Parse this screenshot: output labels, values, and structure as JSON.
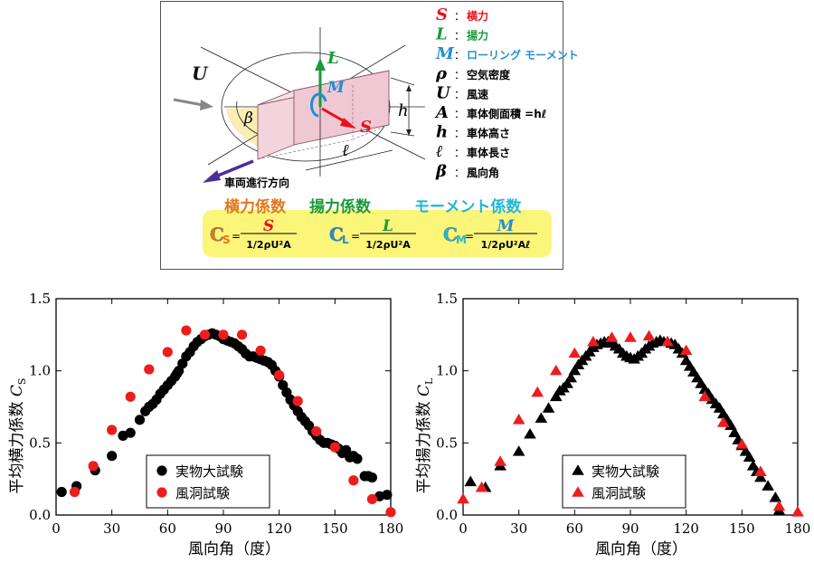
{
  "diagram": {
    "legend": [
      {
        "sym": "S",
        "sep": "：",
        "desc": "横力",
        "symColor": "#e8121b",
        "descColor": "#e8121b"
      },
      {
        "sym": "L",
        "sep": "：",
        "desc": "揚力",
        "symColor": "#1a9a3a",
        "descColor": "#1a9a3a"
      },
      {
        "sym": "M",
        "sep": "：",
        "desc": "ローリング モーメント",
        "symColor": "#1f8fd6",
        "descColor": "#1f8fd6"
      },
      {
        "sym": "ρ",
        "sep": "：",
        "desc": "空気密度",
        "symColor": "#000000",
        "descColor": "#000000"
      },
      {
        "sym": "U",
        "sep": "：",
        "desc": "風速",
        "symColor": "#000000",
        "descColor": "#000000"
      },
      {
        "sym": "A",
        "sep": "：",
        "desc": "車体側面積 =hℓ",
        "symColor": "#000000",
        "descColor": "#000000"
      },
      {
        "sym": "h",
        "sep": "：",
        "desc": "車体高さ",
        "symColor": "#000000",
        "descColor": "#000000"
      },
      {
        "sym": "ℓ",
        "sep": "：",
        "desc": "車体長さ",
        "symColor": "#000000",
        "descColor": "#000000"
      },
      {
        "sym": "β",
        "sep": "：",
        "desc": "風向角",
        "symColor": "#000000",
        "descColor": "#000000"
      }
    ],
    "labels": {
      "U": "U",
      "beta": "β",
      "L": "L",
      "M": "M",
      "S": "S",
      "h": "h",
      "ell": "ℓ",
      "direction": "車両進行方向"
    },
    "coefficients": [
      {
        "title": "横力係数",
        "sym": "C",
        "sub": "S",
        "num": "S",
        "den": "1/2ρU²A",
        "titleColor": "#e07820",
        "numColor": "#e8121b",
        "symColor": "#e07820"
      },
      {
        "title": "揚力係数",
        "sym": "C",
        "sub": "L",
        "num": "L",
        "den": "1/2ρU²A",
        "titleColor": "#1a9a3a",
        "numColor": "#1a9a3a",
        "symColor": "#1f8fd6"
      },
      {
        "title": "モーメント係数",
        "sym": "C",
        "sub": "M",
        "num": "M",
        "den": "1/2ρU²Aℓ",
        "titleColor": "#1fb8d6",
        "numColor": "#1f8fd6",
        "symColor": "#1fb8d6"
      }
    ],
    "eq": "="
  },
  "chart_data": [
    {
      "type": "scatter",
      "ylabel": "平均横力係数",
      "ylabelSym": "C",
      "ylabelSub": "S",
      "xlabel": "風向角（度）",
      "xlim": [
        0,
        180
      ],
      "ylim": [
        0,
        1.5
      ],
      "xticks": [
        "0",
        "30",
        "60",
        "90",
        "120",
        "150",
        "180"
      ],
      "yticks": [
        "0.0",
        "0.5",
        "1.0",
        "1.5"
      ],
      "legend_position": "bottom-center",
      "series": [
        {
          "name": "実物大試験",
          "marker": "circle",
          "color": "#000000",
          "points": [
            [
              3,
              0.16
            ],
            [
              11,
              0.2
            ],
            [
              21,
              0.31
            ],
            [
              30,
              0.41
            ],
            [
              36,
              0.55
            ],
            [
              40,
              0.57
            ],
            [
              45,
              0.66
            ],
            [
              48,
              0.72
            ],
            [
              50,
              0.75
            ],
            [
              52,
              0.77
            ],
            [
              54,
              0.8
            ],
            [
              56,
              0.84
            ],
            [
              58,
              0.87
            ],
            [
              60,
              0.9
            ],
            [
              62,
              0.93
            ],
            [
              64,
              0.96
            ],
            [
              65,
              0.98
            ],
            [
              66,
              1.0
            ],
            [
              68,
              1.05
            ],
            [
              70,
              1.1
            ],
            [
              72,
              1.13
            ],
            [
              74,
              1.17
            ],
            [
              76,
              1.2
            ],
            [
              78,
              1.22
            ],
            [
              80,
              1.24
            ],
            [
              82,
              1.25
            ],
            [
              84,
              1.26
            ],
            [
              86,
              1.25
            ],
            [
              88,
              1.24
            ],
            [
              90,
              1.22
            ],
            [
              92,
              1.21
            ],
            [
              94,
              1.2
            ],
            [
              96,
              1.19
            ],
            [
              98,
              1.17
            ],
            [
              100,
              1.15
            ],
            [
              102,
              1.12
            ],
            [
              104,
              1.1
            ],
            [
              106,
              1.1
            ],
            [
              108,
              1.09
            ],
            [
              110,
              1.08
            ],
            [
              112,
              1.07
            ],
            [
              114,
              1.06
            ],
            [
              116,
              1.04
            ],
            [
              118,
              1.0
            ],
            [
              120,
              0.96
            ],
            [
              122,
              0.9
            ],
            [
              124,
              0.85
            ],
            [
              126,
              0.8
            ],
            [
              128,
              0.76
            ],
            [
              130,
              0.72
            ],
            [
              132,
              0.68
            ],
            [
              134,
              0.65
            ],
            [
              136,
              0.62
            ],
            [
              138,
              0.58
            ],
            [
              140,
              0.55
            ],
            [
              142,
              0.52
            ],
            [
              144,
              0.5
            ],
            [
              146,
              0.5
            ],
            [
              148,
              0.49
            ],
            [
              150,
              0.48
            ],
            [
              152,
              0.46
            ],
            [
              154,
              0.43
            ],
            [
              156,
              0.45
            ],
            [
              158,
              0.4
            ],
            [
              160,
              0.41
            ],
            [
              162,
              0.39
            ],
            [
              166,
              0.27
            ],
            [
              168,
              0.27
            ],
            [
              170,
              0.26
            ],
            [
              174,
              0.13
            ],
            [
              178,
              0.14
            ]
          ]
        },
        {
          "name": "風洞試験",
          "marker": "circle",
          "color": "#ee1c1c",
          "points": [
            [
              10,
              0.16
            ],
            [
              20,
              0.34
            ],
            [
              30,
              0.59
            ],
            [
              40,
              0.82
            ],
            [
              50,
              1.01
            ],
            [
              60,
              1.13
            ],
            [
              70,
              1.28
            ],
            [
              80,
              1.25
            ],
            [
              90,
              1.25
            ],
            [
              100,
              1.25
            ],
            [
              110,
              1.14
            ],
            [
              120,
              0.97
            ],
            [
              130,
              0.79
            ],
            [
              140,
              0.58
            ],
            [
              150,
              0.47
            ],
            [
              160,
              0.24
            ],
            [
              170,
              0.11
            ],
            [
              180,
              0.02
            ]
          ]
        }
      ]
    },
    {
      "type": "scatter",
      "ylabel": "平均揚力係数",
      "ylabelSym": "C",
      "ylabelSub": "L",
      "xlabel": "風向角（度）",
      "xlim": [
        0,
        180
      ],
      "ylim": [
        0,
        1.5
      ],
      "xticks": [
        "0",
        "30",
        "60",
        "90",
        "120",
        "150",
        "180"
      ],
      "yticks": [
        "0.0",
        "0.5",
        "1.0",
        "1.5"
      ],
      "legend_position": "bottom-center",
      "series": [
        {
          "name": "実物大試験",
          "marker": "triangle",
          "color": "#000000",
          "points": [
            [
              4,
              0.23
            ],
            [
              12,
              0.19
            ],
            [
              20,
              0.34
            ],
            [
              30,
              0.44
            ],
            [
              36,
              0.56
            ],
            [
              42,
              0.67
            ],
            [
              46,
              0.74
            ],
            [
              50,
              0.82
            ],
            [
              52,
              0.86
            ],
            [
              54,
              0.88
            ],
            [
              56,
              0.91
            ],
            [
              58,
              0.95
            ],
            [
              60,
              1.0
            ],
            [
              62,
              1.04
            ],
            [
              64,
              1.07
            ],
            [
              66,
              1.1
            ],
            [
              68,
              1.13
            ],
            [
              70,
              1.16
            ],
            [
              72,
              1.18
            ],
            [
              74,
              1.19
            ],
            [
              76,
              1.2
            ],
            [
              78,
              1.2
            ],
            [
              80,
              1.19
            ],
            [
              82,
              1.17
            ],
            [
              84,
              1.15
            ],
            [
              86,
              1.12
            ],
            [
              88,
              1.1
            ],
            [
              90,
              1.09
            ],
            [
              92,
              1.08
            ],
            [
              94,
              1.1
            ],
            [
              96,
              1.12
            ],
            [
              98,
              1.15
            ],
            [
              100,
              1.17
            ],
            [
              102,
              1.19
            ],
            [
              104,
              1.2
            ],
            [
              106,
              1.21
            ],
            [
              108,
              1.2
            ],
            [
              110,
              1.2
            ],
            [
              112,
              1.19
            ],
            [
              114,
              1.18
            ],
            [
              116,
              1.15
            ],
            [
              118,
              1.12
            ],
            [
              120,
              1.07
            ],
            [
              122,
              1.03
            ],
            [
              124,
              0.99
            ],
            [
              126,
              0.95
            ],
            [
              128,
              0.91
            ],
            [
              130,
              0.87
            ],
            [
              132,
              0.84
            ],
            [
              134,
              0.8
            ],
            [
              136,
              0.77
            ],
            [
              138,
              0.74
            ],
            [
              140,
              0.7
            ],
            [
              142,
              0.66
            ],
            [
              144,
              0.62
            ],
            [
              146,
              0.57
            ],
            [
              148,
              0.52
            ],
            [
              150,
              0.48
            ],
            [
              152,
              0.44
            ],
            [
              154,
              0.4
            ],
            [
              156,
              0.34
            ],
            [
              158,
              0.3
            ],
            [
              160,
              0.26
            ],
            [
              164,
              0.2
            ],
            [
              168,
              0.12
            ],
            [
              170,
              0.03
            ]
          ]
        },
        {
          "name": "風洞試験",
          "marker": "triangle",
          "color": "#ee1c1c",
          "points": [
            [
              0,
              0.11
            ],
            [
              10,
              0.19
            ],
            [
              20,
              0.37
            ],
            [
              30,
              0.66
            ],
            [
              40,
              0.85
            ],
            [
              50,
              1.0
            ],
            [
              60,
              1.12
            ],
            [
              70,
              1.2
            ],
            [
              80,
              1.23
            ],
            [
              90,
              1.23
            ],
            [
              100,
              1.24
            ],
            [
              110,
              1.2
            ],
            [
              120,
              1.14
            ],
            [
              130,
              0.82
            ],
            [
              140,
              0.64
            ],
            [
              150,
              0.49
            ],
            [
              160,
              0.3
            ],
            [
              170,
              0.06
            ],
            [
              180,
              0.02
            ]
          ]
        }
      ]
    }
  ]
}
